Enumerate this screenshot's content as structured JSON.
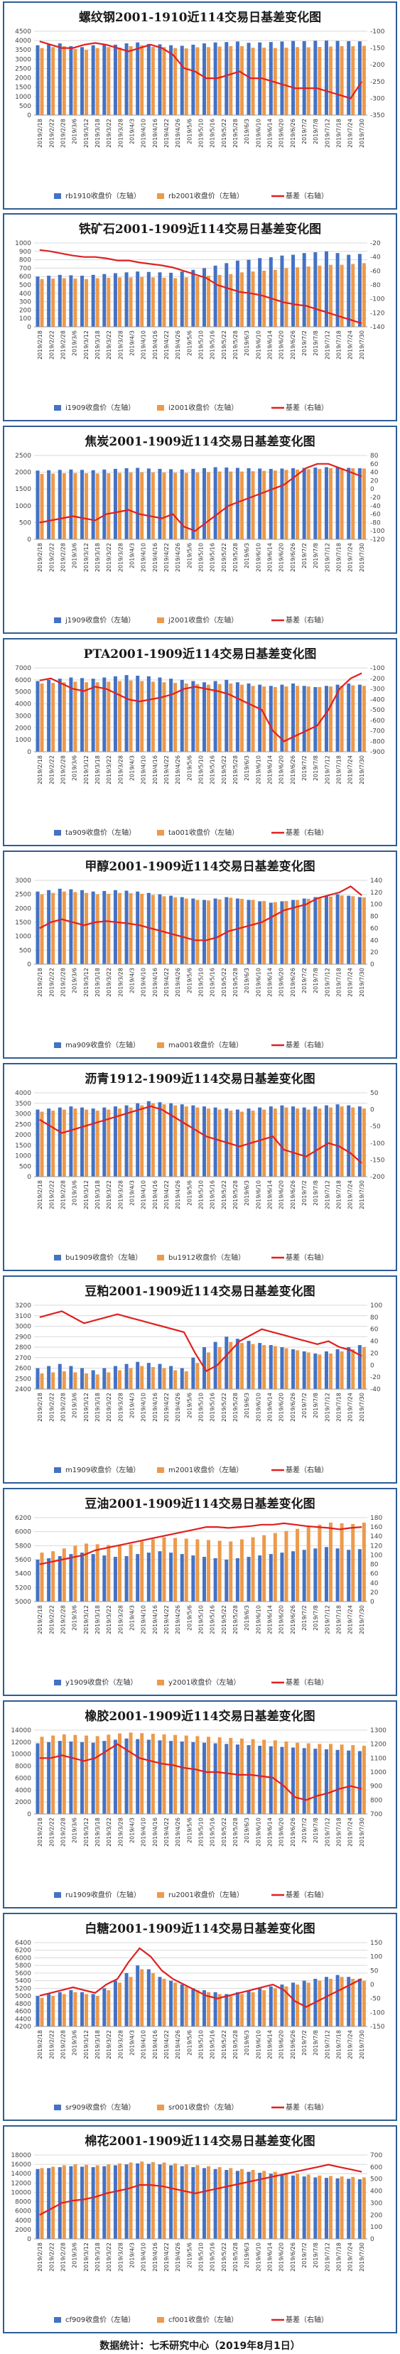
{
  "footer": "数据统计：七禾研究中心（2019年8月1日）",
  "colors": {
    "bar_near": "#4472c4",
    "bar_far": "#ed9a4b",
    "basis_line": "#e02020",
    "frame": "#2e5d96"
  },
  "x_tick_labels": [
    "2019/2/18",
    "2019/2/22",
    "2019/2/28",
    "2019/3/6",
    "2019/3/12",
    "2019/3/18",
    "2019/3/22",
    "2019/3/28",
    "2019/4/3",
    "2019/4/10",
    "2019/4/16",
    "2019/4/22",
    "2019/4/26",
    "2019/5/6",
    "2019/5/10",
    "2019/5/16",
    "2019/5/22",
    "2019/5/28",
    "2019/6/3",
    "2019/6/10",
    "2019/6/14",
    "2019/6/20",
    "2019/6/26",
    "2019/7/2",
    "2019/7/8",
    "2019/7/12",
    "2019/7/18",
    "2019/7/24",
    "2019/7/30"
  ],
  "chart_data": [
    {
      "type": "bar",
      "title": "螺纹钢2001-1910近114交易日基差变化图",
      "legend": [
        "rb1910收盘价（左轴）",
        "rb2001收盘价（左轴）",
        "基差（右轴）"
      ],
      "y_left": [
        0,
        4500,
        500
      ],
      "y_right": [
        -350,
        -100,
        50
      ],
      "bar_near": [
        3750,
        3820,
        3850,
        3700,
        3650,
        3750,
        3800,
        3780,
        3850,
        3900,
        3820,
        3800,
        3750,
        3720,
        3780,
        3850,
        3900,
        3920,
        3950,
        3880,
        3900,
        3920,
        3950,
        3980,
        3970,
        3990,
        4000,
        3980,
        3970,
        3960
      ],
      "bar_far": [
        3600,
        3650,
        3700,
        3550,
        3500,
        3600,
        3650,
        3620,
        3700,
        3750,
        3660,
        3650,
        3600,
        3580,
        3640,
        3650,
        3680,
        3700,
        3700,
        3620,
        3620,
        3600,
        3620,
        3650,
        3640,
        3660,
        3680,
        3700,
        3700,
        3720
      ],
      "basis": [
        -130,
        -140,
        -150,
        -150,
        -140,
        -135,
        -140,
        -150,
        -160,
        -150,
        -140,
        -150,
        -170,
        -210,
        -220,
        -240,
        -240,
        -230,
        -220,
        -240,
        -240,
        -250,
        -260,
        -270,
        -270,
        -270,
        -280,
        -290,
        -300,
        -250
      ]
    },
    {
      "type": "bar",
      "title": "铁矿石2001-1909近114交易日基差变化图",
      "legend": [
        "i1909收盘价（左轴）",
        "i2001收盘价（左轴）",
        "基差（右轴）"
      ],
      "y_left": [
        0,
        1000,
        100
      ],
      "y_right": [
        -140,
        -20,
        20
      ],
      "bar_near": [
        600,
        610,
        620,
        615,
        610,
        620,
        630,
        640,
        650,
        660,
        655,
        650,
        645,
        660,
        680,
        700,
        730,
        760,
        790,
        800,
        820,
        830,
        850,
        860,
        880,
        890,
        900,
        880,
        860,
        870
      ],
      "bar_far": [
        570,
        575,
        580,
        575,
        570,
        580,
        585,
        590,
        590,
        595,
        590,
        585,
        580,
        590,
        600,
        610,
        620,
        630,
        650,
        660,
        670,
        680,
        700,
        710,
        720,
        730,
        740,
        740,
        750,
        760
      ],
      "basis": [
        -30,
        -32,
        -35,
        -38,
        -40,
        -40,
        -42,
        -45,
        -45,
        -48,
        -50,
        -52,
        -55,
        -60,
        -65,
        -70,
        -80,
        -85,
        -90,
        -92,
        -95,
        -100,
        -105,
        -108,
        -110,
        -115,
        -120,
        -125,
        -130,
        -135
      ]
    },
    {
      "type": "bar",
      "title": "焦炭2001-1909近114交易日基差变化图",
      "legend": [
        "j1909收盘价（左轴）",
        "j2001收盘价（左轴）",
        "基差（右轴）"
      ],
      "y_left": [
        0,
        2500,
        500
      ],
      "y_right": [
        -120,
        80,
        20
      ],
      "bar_near": [
        2050,
        2060,
        2070,
        2080,
        2070,
        2060,
        2080,
        2100,
        2120,
        2130,
        2110,
        2100,
        2090,
        2080,
        2100,
        2120,
        2150,
        2140,
        2130,
        2120,
        2110,
        2100,
        2110,
        2120,
        2130,
        2140,
        2150,
        2140,
        2130,
        2120
      ],
      "bar_far": [
        1950,
        1960,
        1970,
        1975,
        1970,
        1965,
        1970,
        1980,
        1990,
        2000,
        1995,
        1990,
        1985,
        1980,
        1990,
        2000,
        2020,
        2020,
        2020,
        2030,
        2040,
        2050,
        2070,
        2080,
        2090,
        2100,
        2120,
        2120,
        2120,
        2110
      ],
      "basis": [
        -80,
        -75,
        -70,
        -65,
        -70,
        -75,
        -60,
        -55,
        -50,
        -60,
        -65,
        -70,
        -60,
        -90,
        -100,
        -80,
        -60,
        -40,
        -30,
        -20,
        -10,
        0,
        10,
        30,
        50,
        60,
        60,
        50,
        40,
        30
      ]
    },
    {
      "type": "bar",
      "title": "PTA2001-1909近114交易日基差变化图",
      "legend": [
        "ta909收盘价（左轴）",
        "ta001收盘价（左轴）",
        "基差（右轴）"
      ],
      "y_left": [
        0,
        7000,
        1000
      ],
      "y_right": [
        -900,
        -100,
        100
      ],
      "bar_near": [
        5900,
        6000,
        6100,
        6200,
        6150,
        6100,
        6200,
        6300,
        6400,
        6350,
        6300,
        6200,
        6100,
        6000,
        5900,
        5800,
        5900,
        6000,
        5800,
        5700,
        5600,
        5500,
        5600,
        5700,
        5500,
        5400,
        5500,
        5600,
        5700,
        5600
      ],
      "bar_far": [
        5700,
        5750,
        5800,
        5850,
        5800,
        5800,
        5850,
        5900,
        5950,
        5900,
        5850,
        5800,
        5750,
        5700,
        5650,
        5600,
        5650,
        5700,
        5600,
        5500,
        5450,
        5400,
        5450,
        5500,
        5450,
        5400,
        5450,
        5500,
        5550,
        5500
      ],
      "basis": [
        -220,
        -200,
        -250,
        -300,
        -320,
        -280,
        -300,
        -350,
        -400,
        -420,
        -400,
        -380,
        -350,
        -300,
        -280,
        -300,
        -320,
        -350,
        -400,
        -450,
        -500,
        -700,
        -800,
        -750,
        -700,
        -650,
        -500,
        -300,
        -200,
        -150
      ]
    },
    {
      "type": "bar",
      "title": "甲醇2001-1909近114交易日基差变化图",
      "legend": [
        "ma909收盘价（左轴）",
        "ma001收盘价（左轴）",
        "基差（右轴）"
      ],
      "y_left": [
        0,
        3000,
        500
      ],
      "y_right": [
        0,
        140,
        20
      ],
      "bar_near": [
        2600,
        2650,
        2700,
        2680,
        2650,
        2600,
        2620,
        2650,
        2630,
        2600,
        2550,
        2500,
        2450,
        2400,
        2350,
        2300,
        2350,
        2400,
        2350,
        2300,
        2250,
        2200,
        2250,
        2300,
        2350,
        2400,
        2450,
        2500,
        2450,
        2400
      ],
      "bar_far": [
        2500,
        2550,
        2600,
        2580,
        2550,
        2500,
        2520,
        2550,
        2540,
        2520,
        2480,
        2430,
        2390,
        2350,
        2300,
        2280,
        2320,
        2380,
        2340,
        2300,
        2260,
        2220,
        2260,
        2300,
        2340,
        2380,
        2420,
        2460,
        2430,
        2390
      ],
      "basis": [
        60,
        70,
        75,
        70,
        65,
        70,
        72,
        70,
        68,
        65,
        60,
        55,
        50,
        45,
        40,
        40,
        45,
        55,
        60,
        65,
        70,
        80,
        90,
        95,
        100,
        110,
        115,
        120,
        130,
        115
      ]
    },
    {
      "type": "bar",
      "title": "沥青1912-1909近114交易日基差变化图",
      "legend": [
        "bu1909收盘价（左轴）",
        "bu1912收盘价（左轴）",
        "基差（右轴）"
      ],
      "y_left": [
        0,
        4000,
        500
      ],
      "y_right": [
        -200,
        50,
        50
      ],
      "bar_near": [
        3200,
        3250,
        3300,
        3350,
        3300,
        3250,
        3300,
        3350,
        3400,
        3500,
        3600,
        3550,
        3500,
        3450,
        3400,
        3350,
        3300,
        3250,
        3200,
        3250,
        3300,
        3350,
        3400,
        3350,
        3300,
        3350,
        3400,
        3450,
        3400,
        3350
      ],
      "bar_far": [
        3100,
        3150,
        3200,
        3250,
        3200,
        3150,
        3200,
        3250,
        3300,
        3400,
        3500,
        3450,
        3400,
        3350,
        3300,
        3250,
        3200,
        3150,
        3100,
        3150,
        3200,
        3250,
        3300,
        3250,
        3200,
        3250,
        3300,
        3350,
        3300,
        3250
      ],
      "basis": [
        -30,
        -50,
        -70,
        -60,
        -50,
        -40,
        -30,
        -20,
        -10,
        0,
        10,
        0,
        -20,
        -40,
        -60,
        -80,
        -90,
        -100,
        -110,
        -100,
        -90,
        -80,
        -120,
        -130,
        -140,
        -120,
        -100,
        -110,
        -130,
        -160
      ]
    },
    {
      "type": "bar",
      "title": "豆粕2001-1909近114交易日基差变化图",
      "legend": [
        "m1909收盘价（左轴）",
        "m2001收盘价（左轴）",
        "基差（右轴）"
      ],
      "y_left": [
        2400,
        3200,
        100
      ],
      "y_right": [
        -40,
        100,
        20
      ],
      "bar_near": [
        2600,
        2620,
        2640,
        2620,
        2600,
        2580,
        2600,
        2620,
        2640,
        2660,
        2650,
        2640,
        2620,
        2600,
        2700,
        2800,
        2850,
        2900,
        2880,
        2860,
        2840,
        2820,
        2800,
        2780,
        2760,
        2740,
        2760,
        2780,
        2800,
        2820
      ],
      "bar_far": [
        2550,
        2560,
        2570,
        2560,
        2550,
        2540,
        2560,
        2580,
        2600,
        2620,
        2610,
        2600,
        2580,
        2570,
        2650,
        2750,
        2800,
        2850,
        2840,
        2830,
        2820,
        2810,
        2790,
        2770,
        2750,
        2730,
        2740,
        2760,
        2780,
        2800
      ],
      "basis": [
        80,
        85,
        90,
        80,
        70,
        75,
        80,
        85,
        80,
        75,
        70,
        65,
        60,
        55,
        20,
        -10,
        0,
        20,
        40,
        50,
        60,
        55,
        50,
        45,
        40,
        35,
        40,
        30,
        25,
        15
      ]
    },
    {
      "type": "bar",
      "title": "豆油2001-1909近114交易日基差变化图",
      "legend": [
        "y1909收盘价（左轴）",
        "y2001收盘价（左轴）",
        "基差（右轴）"
      ],
      "y_left": [
        5000,
        6200,
        200
      ],
      "y_right": [
        0,
        180,
        20
      ],
      "bar_near": [
        5600,
        5620,
        5650,
        5680,
        5700,
        5680,
        5660,
        5640,
        5650,
        5680,
        5700,
        5720,
        5700,
        5680,
        5660,
        5640,
        5620,
        5600,
        5620,
        5640,
        5660,
        5680,
        5700,
        5720,
        5740,
        5760,
        5780,
        5760,
        5740,
        5750
      ],
      "bar_far": [
        5700,
        5720,
        5760,
        5800,
        5830,
        5820,
        5810,
        5800,
        5820,
        5860,
        5890,
        5920,
        5910,
        5900,
        5890,
        5880,
        5870,
        5860,
        5890,
        5920,
        5950,
        5980,
        6010,
        6040,
        6070,
        6100,
        6130,
        6120,
        6110,
        6130
      ],
      "basis": [
        80,
        85,
        90,
        95,
        100,
        110,
        115,
        120,
        125,
        130,
        135,
        140,
        145,
        150,
        155,
        160,
        160,
        158,
        160,
        162,
        165,
        165,
        168,
        165,
        162,
        160,
        158,
        155,
        158,
        160
      ]
    },
    {
      "type": "bar",
      "title": "橡胶2001-1909近114交易日基差变化图",
      "legend": [
        "ru1909收盘价（左轴）",
        "ru2001收盘价（左轴）",
        "基差（右轴）"
      ],
      "y_left": [
        0,
        14000,
        2000
      ],
      "y_right": [
        700,
        1300,
        100
      ],
      "bar_near": [
        11800,
        12000,
        12200,
        12100,
        12000,
        11900,
        12200,
        12400,
        12600,
        12500,
        12400,
        12300,
        12200,
        12100,
        12000,
        11900,
        11800,
        11700,
        11600,
        11500,
        11400,
        11300,
        11200,
        11100,
        11000,
        10900,
        10800,
        10700,
        10600,
        10500
      ],
      "bar_far": [
        12900,
        13100,
        13300,
        13200,
        13100,
        13000,
        13250,
        13450,
        13600,
        13500,
        13400,
        13300,
        13200,
        13100,
        13000,
        12900,
        12800,
        12700,
        12600,
        12500,
        12400,
        12300,
        12100,
        11900,
        11800,
        11700,
        11700,
        11600,
        11500,
        11400
      ],
      "basis": [
        1100,
        1100,
        1120,
        1100,
        1080,
        1100,
        1150,
        1200,
        1150,
        1100,
        1080,
        1060,
        1050,
        1030,
        1020,
        1000,
        1000,
        990,
        980,
        980,
        970,
        960,
        900,
        820,
        800,
        830,
        850,
        880,
        900,
        880
      ]
    },
    {
      "type": "bar",
      "title": "白糖2001-1909近114交易日基差变化图",
      "legend": [
        "sr909收盘价（左轴）",
        "sr001收盘价（左轴）",
        "基差（右轴）"
      ],
      "y_left": [
        4200,
        6400,
        200
      ],
      "y_right": [
        -150,
        150,
        50
      ],
      "bar_near": [
        5000,
        5050,
        5100,
        5150,
        5100,
        5050,
        5200,
        5400,
        5600,
        5800,
        5700,
        5500,
        5400,
        5300,
        5200,
        5150,
        5100,
        5050,
        5100,
        5150,
        5200,
        5250,
        5300,
        5350,
        5400,
        5450,
        5500,
        5550,
        5500,
        5450
      ],
      "bar_far": [
        4950,
        5000,
        5050,
        5100,
        5050,
        5000,
        5150,
        5350,
        5500,
        5700,
        5600,
        5450,
        5350,
        5250,
        5150,
        5100,
        5050,
        5000,
        5050,
        5100,
        5150,
        5200,
        5250,
        5300,
        5350,
        5400,
        5450,
        5500,
        5450,
        5400
      ],
      "basis": [
        -40,
        -30,
        -20,
        -10,
        -20,
        -30,
        0,
        20,
        80,
        130,
        100,
        50,
        20,
        0,
        -20,
        -40,
        -50,
        -40,
        -30,
        -20,
        -10,
        0,
        -20,
        -60,
        -80,
        -60,
        -40,
        -20,
        0,
        20
      ]
    },
    {
      "type": "bar",
      "title": "棉花2001-1909近114交易日基差变化图",
      "legend": [
        "cf909收盘价（左轴）",
        "cf001收盘价（左轴）",
        "基差（右轴）"
      ],
      "y_left": [
        0,
        18000,
        2000
      ],
      "y_right": [
        0,
        700,
        100
      ],
      "bar_near": [
        15000,
        15200,
        15400,
        15600,
        15500,
        15400,
        15600,
        15800,
        16000,
        16200,
        16100,
        16000,
        15800,
        15600,
        15400,
        15200,
        15000,
        14800,
        14600,
        14400,
        14200,
        14000,
        13800,
        13600,
        13400,
        13200,
        13100,
        13000,
        12900,
        12800
      ],
      "bar_far": [
        15200,
        15500,
        15800,
        16000,
        15900,
        15800,
        16000,
        16200,
        16400,
        16600,
        16500,
        16400,
        16200,
        16000,
        15800,
        15600,
        15400,
        15200,
        15000,
        14800,
        14600,
        14400,
        14200,
        14000,
        13800,
        13600,
        13500,
        13400,
        13300,
        13200
      ],
      "basis": [
        200,
        250,
        300,
        320,
        330,
        350,
        380,
        400,
        420,
        450,
        450,
        440,
        420,
        400,
        380,
        400,
        420,
        440,
        460,
        480,
        500,
        520,
        540,
        560,
        580,
        600,
        620,
        600,
        580,
        560
      ]
    }
  ]
}
